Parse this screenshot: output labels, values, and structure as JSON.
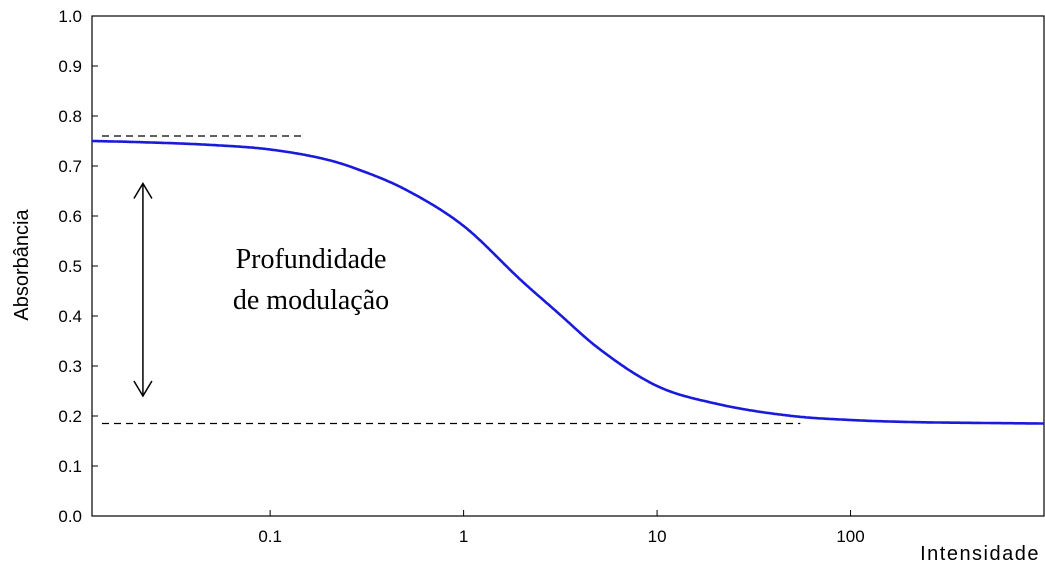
{
  "chart_data": {
    "type": "line",
    "title": "",
    "xlabel": "Intensidade",
    "ylabel": "Absorbância",
    "xscale": "log",
    "xlim": [
      0.012,
      1000
    ],
    "ylim": [
      0.0,
      1.0
    ],
    "yticks": [
      0.0,
      0.1,
      0.2,
      0.3,
      0.4,
      0.5,
      0.6,
      0.7,
      0.8,
      0.9,
      1.0
    ],
    "ytick_labels": [
      "0.0",
      "0.1",
      "0.2",
      "0.3",
      "0.4",
      "0.5",
      "0.6",
      "0.7",
      "0.8",
      "0.9",
      "1.0"
    ],
    "xticks": [
      0.1,
      1,
      10,
      100
    ],
    "xtick_labels": [
      "0.1",
      "1",
      "10",
      "100"
    ],
    "grid": false,
    "series": [
      {
        "color": "#1a1adc",
        "x": [
          0.012,
          0.02,
          0.05,
          0.1,
          0.2,
          0.3,
          0.5,
          1,
          2,
          3,
          5,
          10,
          20,
          50,
          100,
          200,
          500,
          1000
        ],
        "values": [
          0.75,
          0.748,
          0.742,
          0.733,
          0.712,
          0.69,
          0.653,
          0.58,
          0.47,
          0.41,
          0.335,
          0.26,
          0.225,
          0.2,
          0.192,
          0.188,
          0.186,
          0.185
        ]
      }
    ],
    "reference_lines": [
      {
        "y": 0.76,
        "x_from": 0.012,
        "x_to": 0.15,
        "style": "dashed"
      },
      {
        "y": 0.185,
        "x_from": 0.012,
        "x_to": 55,
        "style": "dashed"
      }
    ],
    "annotation": {
      "lines": [
        "Profundidade",
        "de modulação"
      ],
      "arrow": {
        "x": 0.022,
        "y_from": 0.24,
        "y_to": 0.665,
        "style": "double-headed"
      }
    }
  }
}
